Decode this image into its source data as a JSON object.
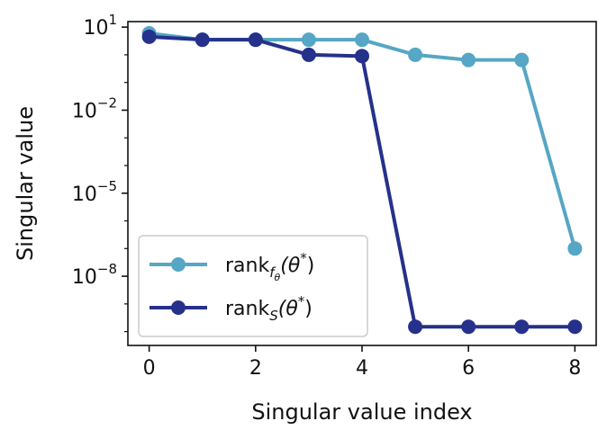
{
  "chart_data": {
    "type": "line",
    "xlabel": "Singular value index",
    "ylabel": "Singular value",
    "y_scale": "log",
    "xlim": [
      -0.4,
      8.4
    ],
    "ylim_log10": [
      -10.5,
      1.2
    ],
    "x_ticks": [
      0,
      2,
      4,
      6,
      8
    ],
    "y_ticks": [
      {
        "base": "10",
        "exp": "1",
        "value_log10": 1
      },
      {
        "base": "10",
        "exp": "−2",
        "value_log10": -2
      },
      {
        "base": "10",
        "exp": "−5",
        "value_log10": -5
      },
      {
        "base": "10",
        "exp": "−8",
        "value_log10": -8
      }
    ],
    "legend_position": "lower-left",
    "grid": false,
    "series": [
      {
        "key": "f",
        "name_main": "rank",
        "name_sub": "f",
        "name_subsub": "θ",
        "name_arg": "(θ",
        "name_sup": "*",
        "name_close": ")",
        "color": "#56a6c5",
        "x": [
          0,
          1,
          2,
          3,
          4,
          5,
          6,
          7,
          8
        ],
        "y": [
          6.0,
          3.5,
          3.5,
          3.5,
          3.5,
          1.0,
          0.65,
          0.65,
          1e-07
        ]
      },
      {
        "key": "s",
        "name_main": "rank",
        "name_sub": "S",
        "name_arg": "(θ",
        "name_sup": "*",
        "name_close": ")",
        "color": "#25318a",
        "x": [
          0,
          1,
          2,
          3,
          4,
          5,
          6,
          7,
          8
        ],
        "y": [
          4.5,
          3.5,
          3.5,
          1.0,
          0.9,
          1.5e-10,
          1.5e-10,
          1.5e-10,
          1.5e-10
        ]
      }
    ]
  }
}
